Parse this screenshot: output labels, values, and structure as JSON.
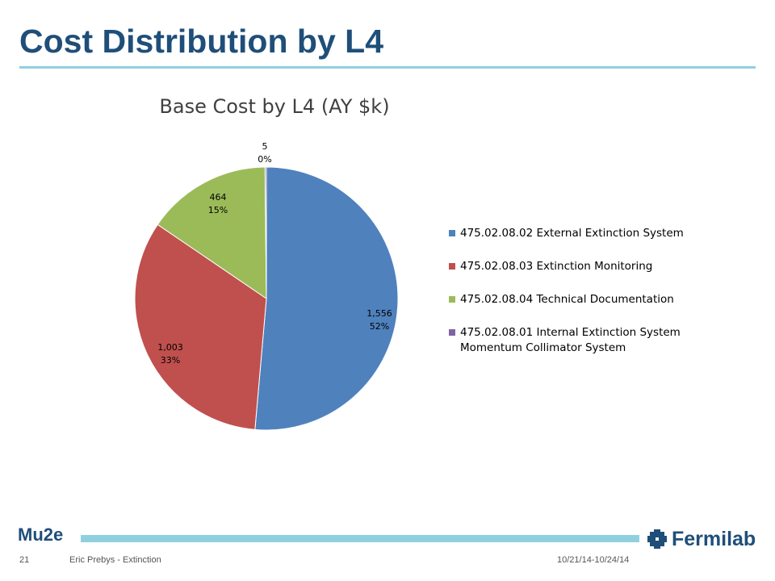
{
  "slide": {
    "title": "Cost Distribution by L4",
    "page_number": "21",
    "author": "Eric Prebys - Extinction",
    "dates": "10/21/14-10/24/14",
    "brand": "Mu2e",
    "logo_text": "Fermilab"
  },
  "chart_data": {
    "type": "pie",
    "title": "Base Cost by L4 (AY $k)",
    "legend_position": "right",
    "slices": [
      {
        "name": "475.02.08.02 External Extinction System",
        "value": 1556,
        "value_label": "1,556",
        "percent_label": "52%",
        "color": "#4f81bd"
      },
      {
        "name": "475.02.08.03 Extinction Monitoring",
        "value": 1003,
        "value_label": "1,003",
        "percent_label": "33%",
        "color": "#c0504d"
      },
      {
        "name": "475.02.08.04 Technical Documentation",
        "value": 464,
        "value_label": "464",
        "percent_label": "15%",
        "color": "#9bbb59"
      },
      {
        "name": "475.02.08.01 Internal Extinction System Momentum Collimator System",
        "value": 5,
        "value_label": "5",
        "percent_label": "0%",
        "color": "#8064a2"
      }
    ]
  },
  "colors": {
    "title": "#1f4e79",
    "rule": "#8fd0e0"
  }
}
